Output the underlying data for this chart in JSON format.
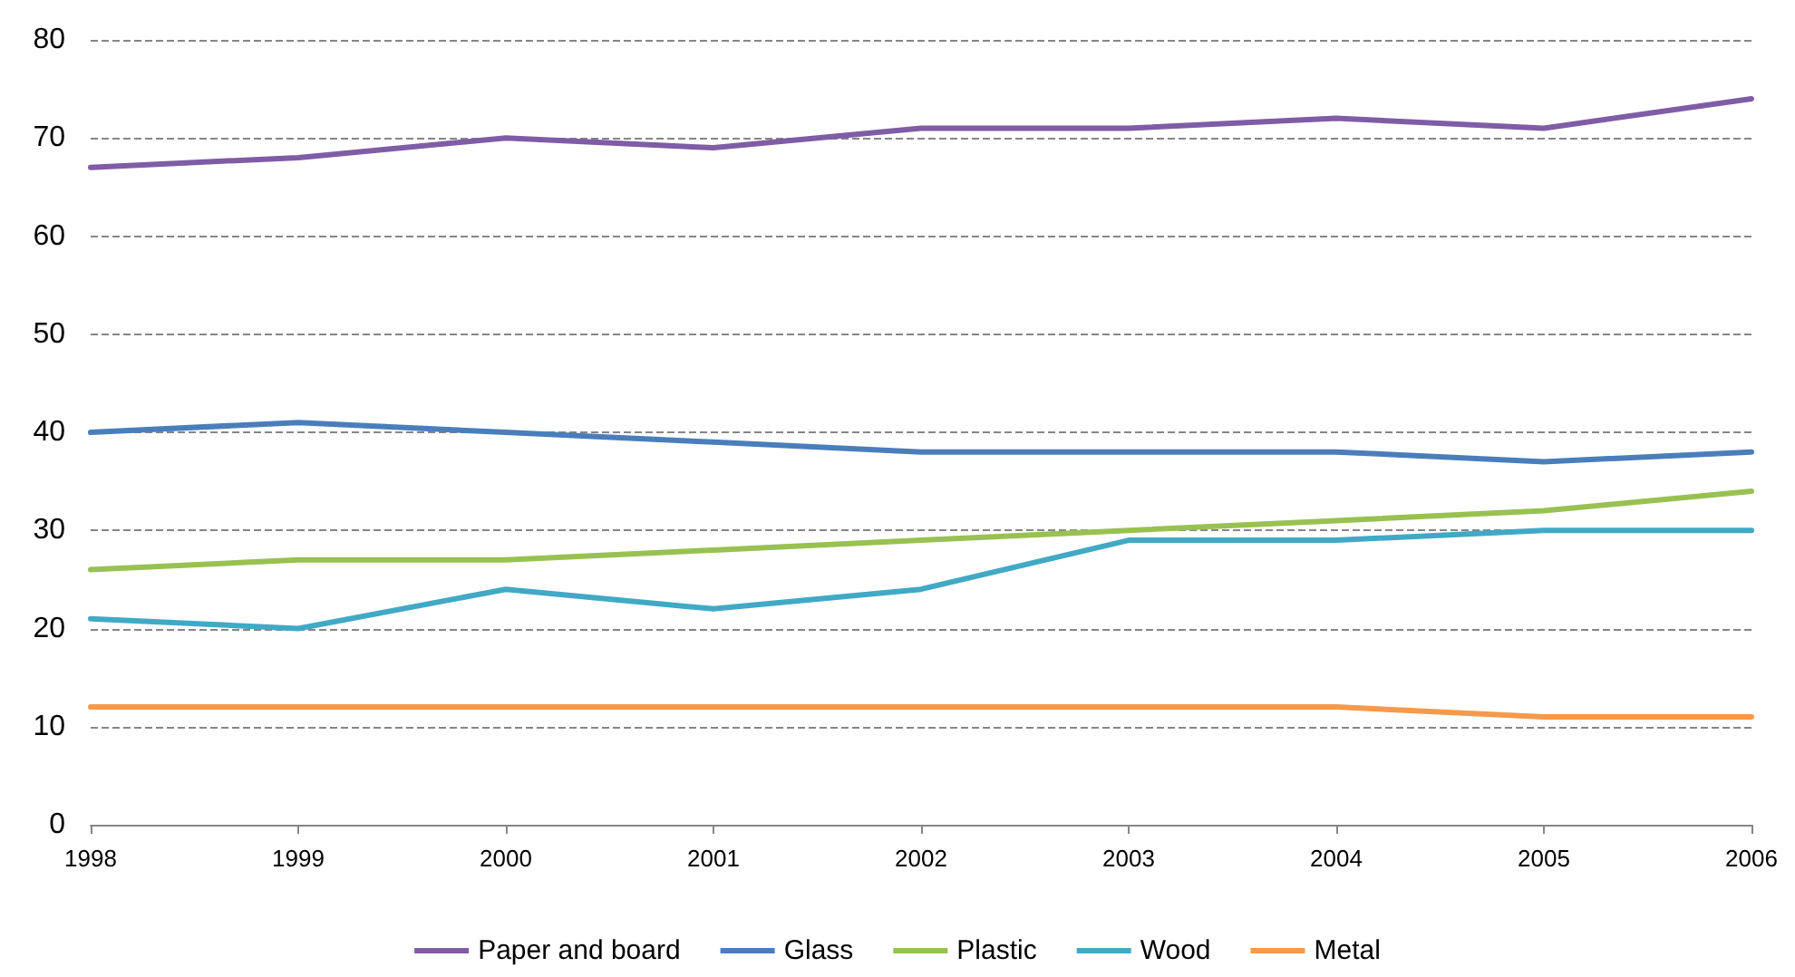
{
  "chart_data": {
    "type": "line",
    "categories": [
      "1998",
      "1999",
      "2000",
      "2001",
      "2002",
      "2003",
      "2004",
      "2005",
      "2006"
    ],
    "series": [
      {
        "name": "Paper and board",
        "color": "#7f5ca6",
        "values": [
          67,
          68,
          70,
          69,
          71,
          71,
          72,
          71,
          74
        ]
      },
      {
        "name": "Glass",
        "color": "#4a7ebb",
        "values": [
          40,
          41,
          40,
          39,
          38,
          38,
          38,
          37,
          38
        ]
      },
      {
        "name": "Plastic",
        "color": "#98c152",
        "values": [
          26,
          27,
          27,
          28,
          29,
          30,
          31,
          32,
          34
        ]
      },
      {
        "name": "Wood",
        "color": "#41a9c5",
        "values": [
          21,
          20,
          24,
          22,
          24,
          29,
          29,
          30,
          30
        ]
      },
      {
        "name": "Metal",
        "color": "#f59a4b",
        "values": [
          12,
          12,
          12,
          12,
          12,
          12,
          12,
          11,
          11
        ]
      }
    ],
    "ylim": [
      0,
      80
    ],
    "yticks": [
      0,
      10,
      20,
      30,
      40,
      50,
      60,
      70,
      80
    ],
    "grid": "y",
    "legend": "bottom",
    "marker": "none",
    "line_style": "solid"
  }
}
